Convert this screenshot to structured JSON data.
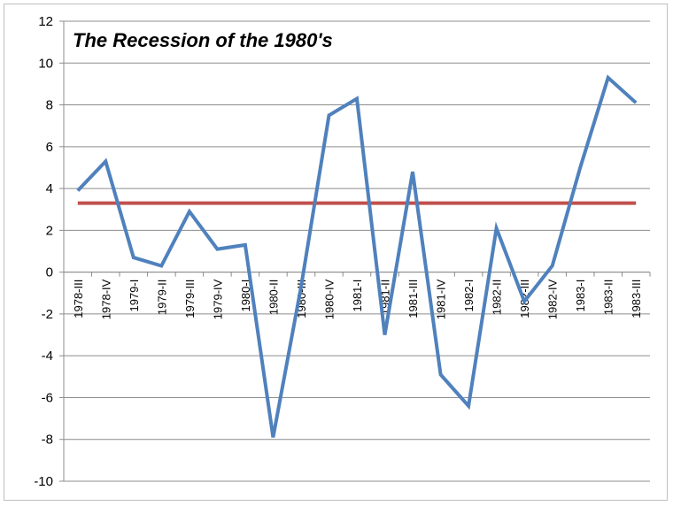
{
  "chart_data": {
    "type": "line",
    "title": "The Recession of  the 1980's",
    "xlabel": "",
    "ylabel": "",
    "ylim": [
      -10,
      12
    ],
    "ytick_step": 2,
    "grid": true,
    "categories": [
      "1978-III",
      "1978-IV",
      "1979-I",
      "1979-II",
      "1979-III",
      "1979-IV",
      "1980-I",
      "1980-II",
      "1980-III",
      "1980-IV",
      "1981-I",
      "1981-II",
      "1981-III",
      "1981-IV",
      "1982-I",
      "1982-II",
      "1982-III",
      "1982-IV",
      "1983-I",
      "1983-II",
      "1983-III"
    ],
    "series": [
      {
        "color": "#4f81bd",
        "values": [
          3.9,
          5.3,
          0.7,
          0.3,
          2.9,
          1.1,
          1.3,
          -7.9,
          -0.7,
          7.5,
          8.3,
          -3.0,
          4.8,
          -4.9,
          -6.4,
          2.1,
          -1.4,
          0.3,
          5.0,
          9.3,
          8.1
        ]
      },
      {
        "color": "#c0504d",
        "values": [
          3.3,
          3.3,
          3.3,
          3.3,
          3.3,
          3.3,
          3.3,
          3.3,
          3.3,
          3.3,
          3.3,
          3.3,
          3.3,
          3.3,
          3.3,
          3.3,
          3.3,
          3.3,
          3.3,
          3.3,
          3.3
        ]
      }
    ]
  }
}
